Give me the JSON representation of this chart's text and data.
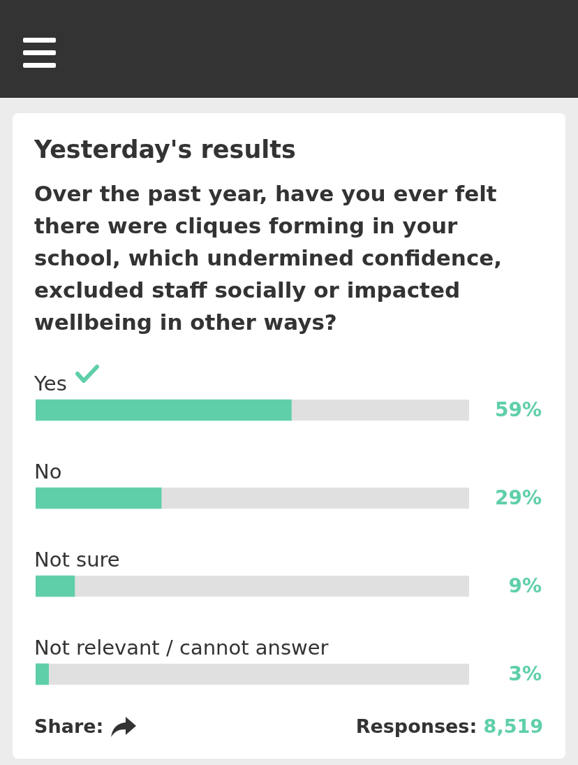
{
  "chart_data": {
    "type": "bar",
    "orientation": "horizontal",
    "title": "Yesterday's results",
    "subtitle": "Over the past year, have you ever felt there were cliques forming in your school, which undermined confidence, excluded staff socially or impacted wellbeing in other ways?",
    "categories": [
      "Yes",
      "No",
      "Not sure",
      "Not relevant / cannot answer"
    ],
    "values": [
      59,
      29,
      9,
      3
    ],
    "value_labels": [
      "59%",
      "29%",
      "9%",
      "3%"
    ],
    "color": "#5fcfa9",
    "xlim": [
      0,
      100
    ],
    "annotations": [
      "Share:",
      "Responses:",
      "8,519"
    ]
  }
}
